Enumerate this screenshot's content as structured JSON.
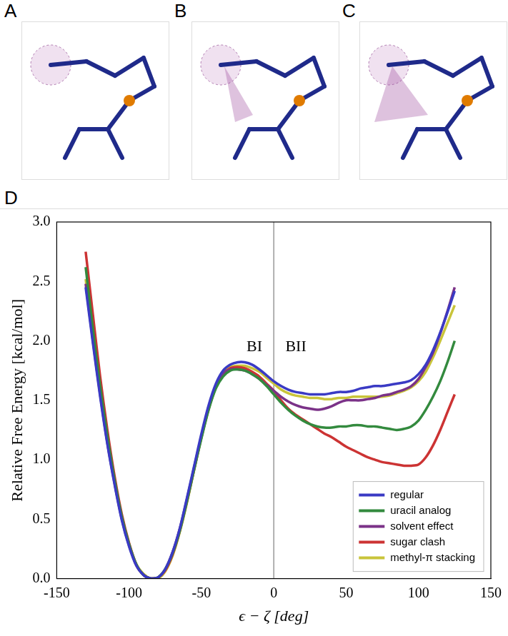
{
  "panels": [
    {
      "label": "A"
    },
    {
      "label": "B"
    },
    {
      "label": "C"
    }
  ],
  "chart_data": {
    "panel_label": "D",
    "type": "line",
    "x_label": "ϵ − ζ [deg]",
    "y_label": "Relative Free Energy [kcal/mol]",
    "xlim": [
      -150,
      150
    ],
    "xticks": [
      -150,
      -100,
      -50,
      0,
      50,
      100,
      150
    ],
    "ylim": [
      0,
      3
    ],
    "yticks": [
      {
        "value": 0,
        "label": "0.0"
      },
      0.5,
      {
        "value": 1,
        "label": "1.0"
      },
      1.5,
      {
        "value": 2,
        "label": "2.0"
      },
      2.5,
      {
        "value": 3,
        "label": "3.0"
      }
    ],
    "grid": false,
    "legend": "lower right",
    "vlines": [
      0
    ],
    "annotations": [
      {
        "text": "BI",
        "x": -8,
        "y": 1.95
      },
      {
        "text": "BII",
        "x": 8,
        "y": 1.95
      }
    ],
    "x": [
      -130,
      -125,
      -120,
      -115,
      -110,
      -105,
      -100,
      -95,
      -90,
      -85,
      -80,
      -75,
      -70,
      -65,
      -60,
      -55,
      -50,
      -45,
      -40,
      -35,
      -30,
      -25,
      -20,
      -15,
      -10,
      -5,
      0,
      5,
      10,
      15,
      20,
      25,
      30,
      35,
      40,
      45,
      50,
      55,
      60,
      65,
      70,
      75,
      80,
      85,
      90,
      95,
      100,
      105,
      110,
      115,
      120,
      125
    ],
    "series": [
      {
        "name": "regular",
        "color": "#3a3ac4",
        "values": [
          2.45,
          1.98,
          1.53,
          1.13,
          0.79,
          0.49,
          0.27,
          0.11,
          0.03,
          0.0,
          0.01,
          0.08,
          0.22,
          0.42,
          0.68,
          0.95,
          1.22,
          1.46,
          1.64,
          1.75,
          1.8,
          1.82,
          1.82,
          1.8,
          1.76,
          1.71,
          1.66,
          1.62,
          1.59,
          1.57,
          1.56,
          1.55,
          1.55,
          1.55,
          1.56,
          1.57,
          1.57,
          1.58,
          1.6,
          1.61,
          1.62,
          1.62,
          1.63,
          1.64,
          1.65,
          1.67,
          1.72,
          1.8,
          1.92,
          2.07,
          2.24,
          2.42
        ]
      },
      {
        "name": "uracil analog",
        "color": "#338a3e",
        "values": [
          2.62,
          2.1,
          1.62,
          1.2,
          0.83,
          0.52,
          0.29,
          0.12,
          0.03,
          0.0,
          0.01,
          0.08,
          0.21,
          0.4,
          0.65,
          0.92,
          1.18,
          1.42,
          1.6,
          1.7,
          1.75,
          1.76,
          1.75,
          1.72,
          1.68,
          1.62,
          1.55,
          1.48,
          1.42,
          1.37,
          1.33,
          1.3,
          1.28,
          1.27,
          1.27,
          1.28,
          1.28,
          1.29,
          1.29,
          1.28,
          1.28,
          1.27,
          1.26,
          1.25,
          1.26,
          1.28,
          1.33,
          1.42,
          1.53,
          1.66,
          1.82,
          2.0
        ]
      },
      {
        "name": "solvent effect",
        "color": "#7b3288",
        "values": [
          2.48,
          2.0,
          1.55,
          1.14,
          0.8,
          0.5,
          0.28,
          0.11,
          0.03,
          0.0,
          0.01,
          0.08,
          0.22,
          0.42,
          0.67,
          0.94,
          1.2,
          1.44,
          1.62,
          1.72,
          1.76,
          1.76,
          1.75,
          1.72,
          1.68,
          1.63,
          1.58,
          1.53,
          1.49,
          1.46,
          1.44,
          1.43,
          1.42,
          1.43,
          1.45,
          1.48,
          1.5,
          1.5,
          1.5,
          1.51,
          1.52,
          1.54,
          1.55,
          1.57,
          1.59,
          1.62,
          1.68,
          1.78,
          1.9,
          2.06,
          2.25,
          2.45
        ]
      },
      {
        "name": "sugar clash",
        "color": "#cc3333",
        "values": [
          2.75,
          2.22,
          1.7,
          1.25,
          0.86,
          0.54,
          0.3,
          0.12,
          0.03,
          0.0,
          0.01,
          0.07,
          0.2,
          0.4,
          0.65,
          0.92,
          1.19,
          1.43,
          1.61,
          1.72,
          1.77,
          1.78,
          1.77,
          1.74,
          1.7,
          1.64,
          1.58,
          1.5,
          1.43,
          1.38,
          1.34,
          1.3,
          1.26,
          1.22,
          1.19,
          1.15,
          1.11,
          1.08,
          1.05,
          1.02,
          1.0,
          0.98,
          0.97,
          0.96,
          0.95,
          0.95,
          0.96,
          1.02,
          1.12,
          1.25,
          1.4,
          1.55
        ]
      },
      {
        "name": "methyl-π stacking",
        "color": "#c9c43a",
        "values": [
          2.52,
          2.03,
          1.57,
          1.16,
          0.81,
          0.51,
          0.29,
          0.12,
          0.04,
          0.0,
          0.0,
          0.06,
          0.19,
          0.39,
          0.64,
          0.92,
          1.19,
          1.43,
          1.62,
          1.73,
          1.78,
          1.79,
          1.79,
          1.77,
          1.74,
          1.69,
          1.64,
          1.59,
          1.56,
          1.54,
          1.53,
          1.52,
          1.52,
          1.51,
          1.51,
          1.52,
          1.52,
          1.53,
          1.53,
          1.53,
          1.53,
          1.53,
          1.54,
          1.56,
          1.58,
          1.61,
          1.66,
          1.74,
          1.86,
          2.0,
          2.15,
          2.3
        ]
      }
    ]
  }
}
